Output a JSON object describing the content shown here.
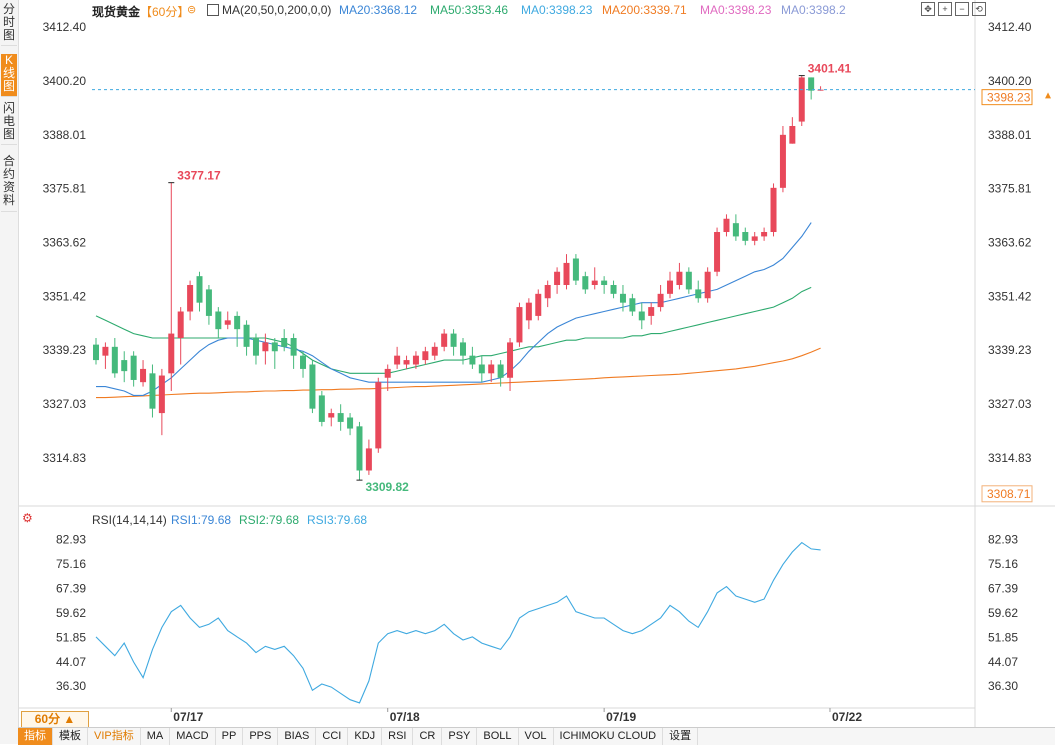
{
  "header": {
    "symbol": "现货黄金",
    "period_label": "【60分】",
    "ma_spec": "MA(20,50,0,200,0,0)",
    "ma20": "MA20:3368.12",
    "ma50": "MA50:3353.46",
    "ma0a": "MA0:3398.23",
    "ma200": "MA200:3339.71",
    "ma0b": "MA0:3398.23",
    "ma0c": "MA0:3398.2"
  },
  "left_tabs": [
    "分时图",
    "K线图",
    "闪电图",
    "合约资料"
  ],
  "tool_icons": [
    "move-icon",
    "zoom-in-icon",
    "zoom-out-icon",
    "reset-icon"
  ],
  "rsi_header": {
    "title": "RSI(14,14,14)",
    "rsi1": "RSI1:79.68",
    "rsi2": "RSI2:79.68",
    "rsi3": "RSI3:79.68"
  },
  "period_button": "60分 ▲",
  "bottom_tabs": [
    "指标",
    "模板",
    "VIP指标",
    "MA",
    "MACD",
    "PP",
    "PPS",
    "BIAS",
    "CCI",
    "KDJ",
    "RSI",
    "CR",
    "PSY",
    "BOLL",
    "VOL",
    "ICHIMOKU CLOUD",
    "设置"
  ],
  "colors": {
    "up": "#e8485a",
    "down": "#45b97c",
    "ma20": "#3b86d6",
    "ma50": "#2daa6e",
    "ma200": "#f07b22",
    "rsi": "#3fa9e0",
    "accent": "#f08c1c"
  },
  "chart_data": {
    "type": "candlestick",
    "price_axis_ticks": [
      "3412.40",
      "3400.20",
      "3388.01",
      "3375.81",
      "3363.62",
      "3351.42",
      "3339.23",
      "3327.03",
      "3314.83"
    ],
    "current_price": "3398.23",
    "last_close_line": 3398.23,
    "low_axis_label": "3308.71",
    "annotations": [
      {
        "label": "3377.17",
        "price": 3377.17
      },
      {
        "label": "3309.82",
        "price": 3309.82
      },
      {
        "label": "3401.41",
        "price": 3401.41
      }
    ],
    "x_labels": [
      "07/17",
      "07/18",
      "07/19",
      "07/22"
    ],
    "x_label_index": [
      8,
      31,
      54,
      78
    ],
    "ylim": [
      3306,
      3414
    ],
    "candles": [
      [
        3340.5,
        3337,
        3342,
        3336
      ],
      [
        3338,
        3340,
        3341,
        3335
      ],
      [
        3340,
        3334,
        3342,
        3333
      ],
      [
        3337,
        3334.5,
        3339,
        3332
      ],
      [
        3338,
        3332.5,
        3339,
        3331
      ],
      [
        3332,
        3335,
        3337,
        3331
      ],
      [
        3334,
        3326,
        3336,
        3324
      ],
      [
        3325,
        3333.5,
        3335,
        3320
      ],
      [
        3334,
        3343,
        3377.17,
        3330
      ],
      [
        3342,
        3348,
        3349,
        3336
      ],
      [
        3348,
        3354,
        3355,
        3346
      ],
      [
        3356,
        3350,
        3357,
        3348
      ],
      [
        3353,
        3347,
        3354,
        3345
      ],
      [
        3348,
        3344,
        3349,
        3342
      ],
      [
        3345,
        3346,
        3348,
        3344
      ],
      [
        3347,
        3344,
        3348,
        3340
      ],
      [
        3345,
        3340,
        3346,
        3338
      ],
      [
        3342,
        3338,
        3343,
        3336
      ],
      [
        3339,
        3341,
        3343,
        3336
      ],
      [
        3341,
        3339,
        3342,
        3335
      ],
      [
        3342,
        3340,
        3344,
        3339
      ],
      [
        3342,
        3338,
        3343,
        3335
      ],
      [
        3338,
        3335,
        3339,
        3333
      ],
      [
        3336,
        3326,
        3337,
        3325
      ],
      [
        3329,
        3323,
        3330,
        3322
      ],
      [
        3324,
        3325,
        3326,
        3322
      ],
      [
        3325,
        3323,
        3327,
        3321
      ],
      [
        3324,
        3321.5,
        3325,
        3320
      ],
      [
        3322,
        3312,
        3323,
        3309.82
      ],
      [
        3312,
        3317,
        3319,
        3311
      ],
      [
        3317,
        3332,
        3333,
        3316
      ],
      [
        3333,
        3335,
        3336,
        3330
      ],
      [
        3336,
        3338,
        3340,
        3335
      ],
      [
        3336,
        3337,
        3338,
        3335
      ],
      [
        3336,
        3338,
        3339,
        3335
      ],
      [
        3337,
        3339,
        3340,
        3336
      ],
      [
        3338,
        3340,
        3341,
        3337
      ],
      [
        3340,
        3343,
        3344,
        3339
      ],
      [
        3343,
        3340,
        3344,
        3338
      ],
      [
        3341,
        3338,
        3342,
        3336
      ],
      [
        3338,
        3336,
        3340,
        3335
      ],
      [
        3336,
        3334,
        3338,
        3332
      ],
      [
        3334,
        3336,
        3337,
        3332
      ],
      [
        3336,
        3333,
        3337,
        3331
      ],
      [
        3333,
        3341,
        3342,
        3330
      ],
      [
        3341,
        3349,
        3350,
        3340
      ],
      [
        3346,
        3350,
        3351,
        3344
      ],
      [
        3347,
        3352,
        3353,
        3346
      ],
      [
        3351,
        3354,
        3355,
        3349
      ],
      [
        3354,
        3357,
        3358,
        3352
      ],
      [
        3354,
        3359,
        3361,
        3353
      ],
      [
        3360,
        3355,
        3361,
        3354
      ],
      [
        3356,
        3353,
        3357,
        3352
      ],
      [
        3354,
        3355,
        3358,
        3353
      ],
      [
        3355,
        3354,
        3356,
        3352
      ],
      [
        3354,
        3352,
        3355,
        3351
      ],
      [
        3352,
        3350,
        3354,
        3348
      ],
      [
        3351,
        3348,
        3352,
        3347
      ],
      [
        3348,
        3346,
        3350,
        3344
      ],
      [
        3347,
        3349,
        3350,
        3345
      ],
      [
        3349,
        3352,
        3354,
        3348
      ],
      [
        3352,
        3355,
        3357,
        3351
      ],
      [
        3354,
        3357,
        3359,
        3353
      ],
      [
        3357,
        3353,
        3358,
        3352
      ],
      [
        3353,
        3351,
        3355,
        3350
      ],
      [
        3351,
        3357,
        3358,
        3350
      ],
      [
        3357,
        3366,
        3367,
        3356
      ],
      [
        3366,
        3369,
        3370,
        3365
      ],
      [
        3368,
        3365,
        3370,
        3364
      ],
      [
        3366,
        3364,
        3367,
        3363
      ],
      [
        3364,
        3365,
        3366,
        3363
      ],
      [
        3365,
        3366,
        3367,
        3364
      ],
      [
        3366,
        3376,
        3377,
        3365
      ],
      [
        3376,
        3388,
        3390,
        3375
      ],
      [
        3386,
        3390,
        3392,
        3386
      ],
      [
        3391,
        3401,
        3401.41,
        3390
      ],
      [
        3401,
        3398,
        3401,
        3396
      ],
      [
        3398,
        3398.23,
        3399,
        3398
      ]
    ],
    "ma20": [
      3331,
      3331,
      3330.5,
      3330,
      3329,
      3329,
      3330,
      3331.5,
      3333,
      3335,
      3337,
      3339,
      3340.5,
      3341.5,
      3342,
      3342,
      3342,
      3341.5,
      3341,
      3340.5,
      3340,
      3339.5,
      3339,
      3338,
      3336.5,
      3335,
      3334,
      3333,
      3332.5,
      3332,
      3332,
      3332,
      3332,
      3332,
      3332,
      3332,
      3332,
      3332,
      3332,
      3332,
      3332,
      3332,
      3332.5,
      3333,
      3334.5,
      3336.5,
      3339,
      3341,
      3343,
      3344.5,
      3345.5,
      3346.5,
      3347,
      3347.5,
      3348,
      3348.5,
      3349,
      3349.5,
      3350,
      3350,
      3350,
      3350.5,
      3351,
      3351.5,
      3352,
      3352.5,
      3353,
      3354,
      3355,
      3356,
      3357,
      3357.5,
      3358.5,
      3360,
      3362.5,
      3365,
      3368.12
    ],
    "ma50": [
      3347,
      3346,
      3345,
      3344,
      3343,
      3342.5,
      3342,
      3342,
      3342,
      3342,
      3342,
      3342,
      3342,
      3342,
      3342,
      3342,
      3342,
      3342,
      3342,
      3341.5,
      3341,
      3340,
      3338.5,
      3337,
      3336,
      3335,
      3334.5,
      3334,
      3334,
      3334,
      3334,
      3334,
      3334.5,
      3335,
      3335.5,
      3336,
      3336.5,
      3337,
      3337,
      3337,
      3337.5,
      3338,
      3338,
      3338.5,
      3339,
      3339.5,
      3340,
      3340,
      3340.5,
      3341,
      3341.5,
      3341.5,
      3342,
      3342,
      3342,
      3342,
      3342,
      3342.5,
      3342.5,
      3343,
      3343,
      3343.5,
      3344,
      3344.5,
      3345,
      3345.5,
      3346,
      3346.5,
      3347,
      3347.5,
      3348,
      3348.5,
      3349,
      3350,
      3351,
      3352.5,
      3353.46
    ],
    "ma200": [
      3328.5,
      3328.5,
      3328.6,
      3328.7,
      3328.8,
      3328.9,
      3329,
      3329.1,
      3329.2,
      3329.3,
      3329.4,
      3329.5,
      3329.5,
      3329.6,
      3329.7,
      3329.8,
      3329.8,
      3329.9,
      3330,
      3330,
      3330.1,
      3330.1,
      3330.2,
      3330.2,
      3330.3,
      3330.3,
      3330.4,
      3330.4,
      3330.5,
      3330.5,
      3330.6,
      3330.7,
      3330.8,
      3330.9,
      3331,
      3331,
      3331.1,
      3331.2,
      3331.3,
      3331.4,
      3331.5,
      3331.6,
      3331.7,
      3331.8,
      3331.9,
      3332,
      3332.1,
      3332.2,
      3332.3,
      3332.4,
      3332.5,
      3332.6,
      3332.7,
      3332.8,
      3333,
      3333.1,
      3333.2,
      3333.3,
      3333.4,
      3333.5,
      3333.6,
      3333.7,
      3333.8,
      3334,
      3334.2,
      3334.4,
      3334.6,
      3334.8,
      3335,
      3335.3,
      3335.6,
      3336,
      3336.4,
      3336.8,
      3337.3,
      3338,
      3338.8,
      3339.71
    ],
    "rsi": {
      "axis_ticks": [
        "82.93",
        "75.16",
        "67.39",
        "59.62",
        "51.85",
        "44.07",
        "36.30"
      ],
      "ylim": [
        30,
        86
      ],
      "values": [
        52,
        49,
        46,
        50,
        44,
        39,
        48,
        55,
        60,
        62,
        58,
        55,
        56,
        58,
        54,
        52,
        50,
        47,
        49,
        48,
        49,
        46,
        42,
        35,
        37,
        36,
        34,
        32,
        31,
        38,
        50,
        53,
        54,
        53,
        54,
        53,
        54,
        56,
        53,
        51,
        52,
        50,
        49,
        48,
        52,
        58,
        60,
        61,
        62,
        63,
        65,
        60,
        59,
        58,
        58,
        56,
        54,
        53,
        54,
        56,
        58,
        62,
        60,
        57,
        55,
        60,
        66,
        68,
        65,
        64,
        63,
        64,
        70,
        75,
        79,
        82,
        80,
        79.68
      ]
    }
  }
}
